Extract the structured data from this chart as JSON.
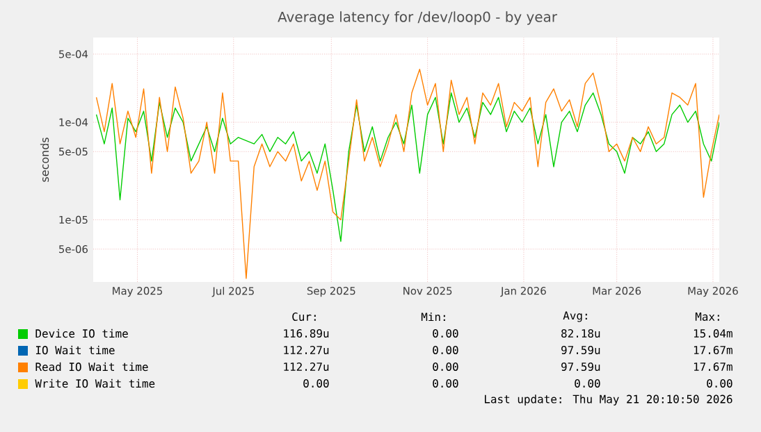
{
  "chart_data": {
    "type": "line",
    "title": "Average latency for /dev/loop0 - by year",
    "ylabel": "seconds",
    "log": true,
    "grid": true,
    "legend": "bottom",
    "xlim": [
      "2025-04-03",
      "2026-05-05"
    ],
    "ylim": [
      2.3e-06,
      0.00074
    ],
    "xticks": [
      {
        "value": "2025-05-01",
        "label": "May 2025"
      },
      {
        "value": "2025-07-01",
        "label": "Jul 2025"
      },
      {
        "value": "2025-09-01",
        "label": "Sep 2025"
      },
      {
        "value": "2025-11-01",
        "label": "Nov 2025"
      },
      {
        "value": "2026-01-01",
        "label": "Jan 2026"
      },
      {
        "value": "2026-03-01",
        "label": "Mar 2026"
      },
      {
        "value": "2026-05-01",
        "label": "May 2026"
      }
    ],
    "yticks": [
      {
        "value": 5e-06,
        "label": "5e-06"
      },
      {
        "value": 1e-05,
        "label": "1e-05"
      },
      {
        "value": 5e-05,
        "label": "5e-05"
      },
      {
        "value": 0.0001,
        "label": "1e-04"
      },
      {
        "value": 0.0005,
        "label": "5e-04"
      }
    ],
    "x": [
      "2025-04-05",
      "2025-04-10",
      "2025-04-15",
      "2025-04-20",
      "2025-04-25",
      "2025-04-30",
      "2025-05-05",
      "2025-05-10",
      "2025-05-15",
      "2025-05-20",
      "2025-05-25",
      "2025-05-30",
      "2025-06-04",
      "2025-06-09",
      "2025-06-14",
      "2025-06-19",
      "2025-06-24",
      "2025-06-29",
      "2025-07-04",
      "2025-07-09",
      "2025-07-14",
      "2025-07-19",
      "2025-07-24",
      "2025-07-29",
      "2025-08-03",
      "2025-08-08",
      "2025-08-13",
      "2025-08-18",
      "2025-08-23",
      "2025-08-28",
      "2025-09-02",
      "2025-09-07",
      "2025-09-12",
      "2025-09-17",
      "2025-09-22",
      "2025-09-27",
      "2025-10-02",
      "2025-10-07",
      "2025-10-12",
      "2025-10-17",
      "2025-10-22",
      "2025-10-27",
      "2025-11-01",
      "2025-11-06",
      "2025-11-11",
      "2025-11-16",
      "2025-11-21",
      "2025-11-26",
      "2025-12-01",
      "2025-12-06",
      "2025-12-11",
      "2025-12-16",
      "2025-12-21",
      "2025-12-26",
      "2025-12-31",
      "2026-01-05",
      "2026-01-10",
      "2026-01-15",
      "2026-01-20",
      "2026-01-25",
      "2026-01-30",
      "2026-02-04",
      "2026-02-09",
      "2026-02-14",
      "2026-02-19",
      "2026-02-24",
      "2026-03-01",
      "2026-03-06",
      "2026-03-11",
      "2026-03-16",
      "2026-03-21",
      "2026-03-26",
      "2026-03-31",
      "2026-04-05",
      "2026-04-10",
      "2026-04-15",
      "2026-04-20",
      "2026-04-25",
      "2026-04-30",
      "2026-05-05"
    ],
    "series": [
      {
        "name": "Device IO time",
        "color": "#00cc00",
        "values": [
          0.00012,
          6e-05,
          0.00014,
          1.6e-05,
          0.00011,
          8e-05,
          0.00013,
          4e-05,
          0.00016,
          7e-05,
          0.00014,
          0.0001,
          4e-05,
          6e-05,
          9e-05,
          5e-05,
          0.00011,
          6e-05,
          7e-05,
          null,
          6e-05,
          7.5e-05,
          5e-05,
          7e-05,
          6e-05,
          8e-05,
          4e-05,
          5e-05,
          3e-05,
          6e-05,
          2e-05,
          6e-06,
          5e-05,
          0.00015,
          5e-05,
          9e-05,
          4e-05,
          7e-05,
          0.0001,
          6e-05,
          0.00015,
          3e-05,
          0.00012,
          0.00018,
          6e-05,
          0.0002,
          0.0001,
          0.00014,
          7e-05,
          0.00016,
          0.00012,
          0.00018,
          8e-05,
          0.00013,
          0.0001,
          0.00014,
          6e-05,
          0.00012,
          3.5e-05,
          0.0001,
          0.00013,
          8e-05,
          0.00015,
          0.0002,
          0.00012,
          6e-05,
          5e-05,
          3e-05,
          7e-05,
          6e-05,
          8e-05,
          5e-05,
          6e-05,
          0.00012,
          0.00015,
          0.0001,
          0.00013,
          6e-05,
          4e-05,
          0.0001
        ]
      },
      {
        "name": "IO Wait time",
        "color": "#0066b3",
        "values": [
          null,
          null,
          null,
          null,
          null,
          null,
          null,
          null,
          null,
          null,
          null,
          null,
          null,
          null,
          null,
          null,
          null,
          null,
          null,
          null,
          null,
          null,
          null,
          null,
          null,
          null,
          null,
          null,
          null,
          null,
          null,
          null,
          null,
          null,
          null,
          null,
          null,
          null,
          null,
          null,
          null,
          null,
          null,
          null,
          null,
          null,
          null,
          null,
          null,
          null,
          null,
          null,
          null,
          null,
          null,
          null,
          null,
          null,
          null,
          null,
          null,
          null,
          null,
          null,
          null,
          null,
          null,
          null,
          null,
          null,
          null,
          null,
          null,
          null,
          null,
          null,
          null,
          null,
          null,
          null
        ]
      },
      {
        "name": "Read IO Wait time",
        "color": "#ff8000",
        "values": [
          0.00018,
          8e-05,
          0.00025,
          6e-05,
          0.00013,
          7e-05,
          0.00022,
          3e-05,
          0.00018,
          5e-05,
          0.00023,
          0.00011,
          3e-05,
          4e-05,
          0.0001,
          3e-05,
          0.0002,
          4e-05,
          4e-05,
          2.5e-06,
          3.5e-05,
          6e-05,
          3.5e-05,
          5e-05,
          4e-05,
          6e-05,
          2.5e-05,
          4e-05,
          2e-05,
          4e-05,
          1.2e-05,
          1e-05,
          4e-05,
          0.00017,
          4e-05,
          7e-05,
          3.5e-05,
          6e-05,
          0.00012,
          5e-05,
          0.0002,
          0.00035,
          0.00015,
          0.00025,
          5e-05,
          0.00027,
          0.00012,
          0.00018,
          6e-05,
          0.0002,
          0.00015,
          0.00025,
          9e-05,
          0.00016,
          0.00013,
          0.00018,
          3.5e-05,
          0.00016,
          0.00022,
          0.00013,
          0.00017,
          9e-05,
          0.00025,
          0.00032,
          0.00015,
          5e-05,
          6e-05,
          4e-05,
          7e-05,
          5e-05,
          9e-05,
          6e-05,
          7e-05,
          0.0002,
          0.00018,
          0.00015,
          0.00025,
          1.7e-05,
          5e-05,
          0.00012
        ]
      },
      {
        "name": "Write IO Wait time",
        "color": "#ffcc00",
        "values": [
          null,
          null,
          null,
          null,
          null,
          null,
          null,
          null,
          null,
          null,
          null,
          null,
          null,
          null,
          null,
          null,
          null,
          null,
          null,
          null,
          null,
          null,
          null,
          null,
          null,
          null,
          null,
          null,
          null,
          null,
          null,
          null,
          null,
          null,
          null,
          null,
          null,
          null,
          null,
          null,
          null,
          null,
          null,
          null,
          null,
          null,
          null,
          null,
          null,
          null,
          null,
          null,
          null,
          null,
          null,
          null,
          null,
          null,
          null,
          null,
          null,
          null,
          null,
          null,
          null,
          null,
          null,
          null,
          null,
          null,
          null,
          null,
          null,
          null,
          null,
          null,
          null,
          null,
          null,
          null
        ]
      }
    ],
    "annotations": [
      "Cur:",
      "Min:",
      "Avg:",
      "Max:",
      "116.89u",
      "0.00",
      "82.18u",
      "15.04m",
      "112.27u",
      "0.00",
      "97.59u",
      "17.67m",
      "112.27u",
      "0.00",
      "97.59u",
      "17.67m",
      "0.00",
      "0.00",
      "0.00",
      "0.00",
      "Last update: Thu May 21 20:10:50 2026"
    ]
  }
}
